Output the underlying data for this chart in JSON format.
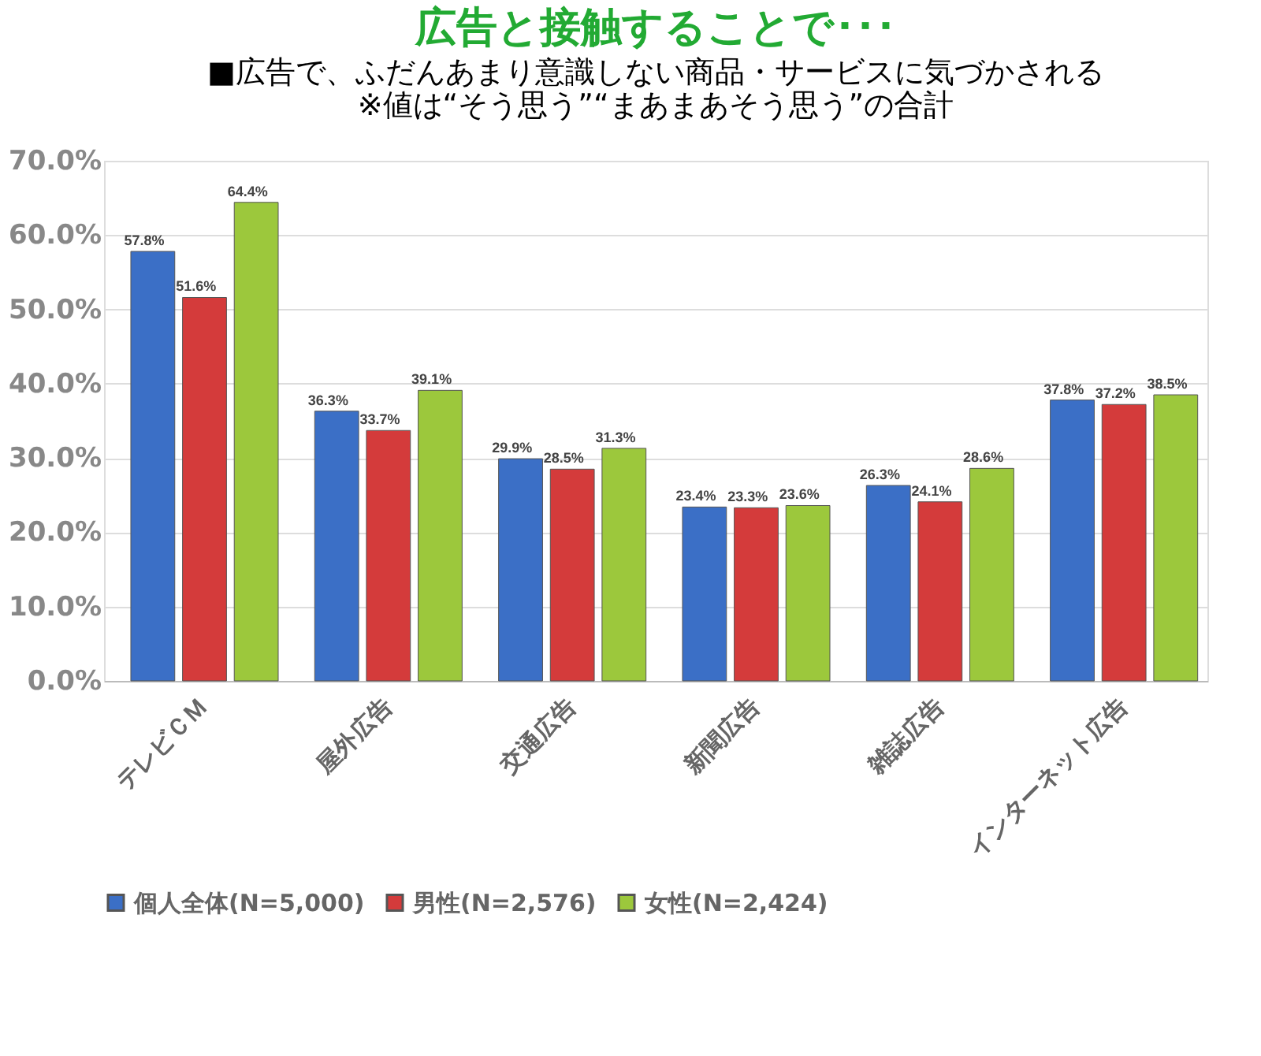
{
  "chart_data": {
    "type": "bar",
    "title": "広告と接触することで･･･",
    "subtitle": "■広告で、ふだんあまり意識しない商品・サービスに気づかされる",
    "annotations": [
      "※値は“そう思う”“まあまあそう思う”の合計"
    ],
    "categories": [
      "テレビＣＭ",
      "屋外広告",
      "交通広告",
      "新聞広告",
      "雑誌広告",
      "インターネット広告"
    ],
    "series": [
      {
        "name": "個人全体(N=5,000)",
        "color": "#3b6fc6",
        "values": [
          57.8,
          36.3,
          29.9,
          23.4,
          26.3,
          37.8
        ],
        "value_labels": [
          "57.8%",
          "36.3%",
          "29.9%",
          "23.4%",
          "26.3%",
          "37.8%"
        ]
      },
      {
        "name": "男性(N=2,576)",
        "color": "#d43b3b",
        "values": [
          51.6,
          33.7,
          28.5,
          23.3,
          24.1,
          37.2
        ],
        "value_labels": [
          "51.6%",
          "33.7%",
          "28.5%",
          "23.3%",
          "24.1%",
          "37.2%"
        ]
      },
      {
        "name": "女性(N=2,424)",
        "color": "#9cc83c",
        "values": [
          64.4,
          39.1,
          31.3,
          23.6,
          28.6,
          38.5
        ],
        "value_labels": [
          "64.4%",
          "39.1%",
          "31.3%",
          "23.6%",
          "28.6%",
          "38.5%"
        ]
      }
    ],
    "ylim": [
      0,
      70
    ],
    "yticks": [
      {
        "value": 0,
        "label": "0.0%"
      },
      {
        "value": 10,
        "label": "10.0%"
      },
      {
        "value": 20,
        "label": "20.0%"
      },
      {
        "value": 30,
        "label": "30.0%"
      },
      {
        "value": 40,
        "label": "40.0%"
      },
      {
        "value": 50,
        "label": "50.0%"
      },
      {
        "value": 60,
        "label": "60.0%"
      },
      {
        "value": 70,
        "label": "70.0%"
      }
    ],
    "grid": "y",
    "legend": "bottom"
  }
}
